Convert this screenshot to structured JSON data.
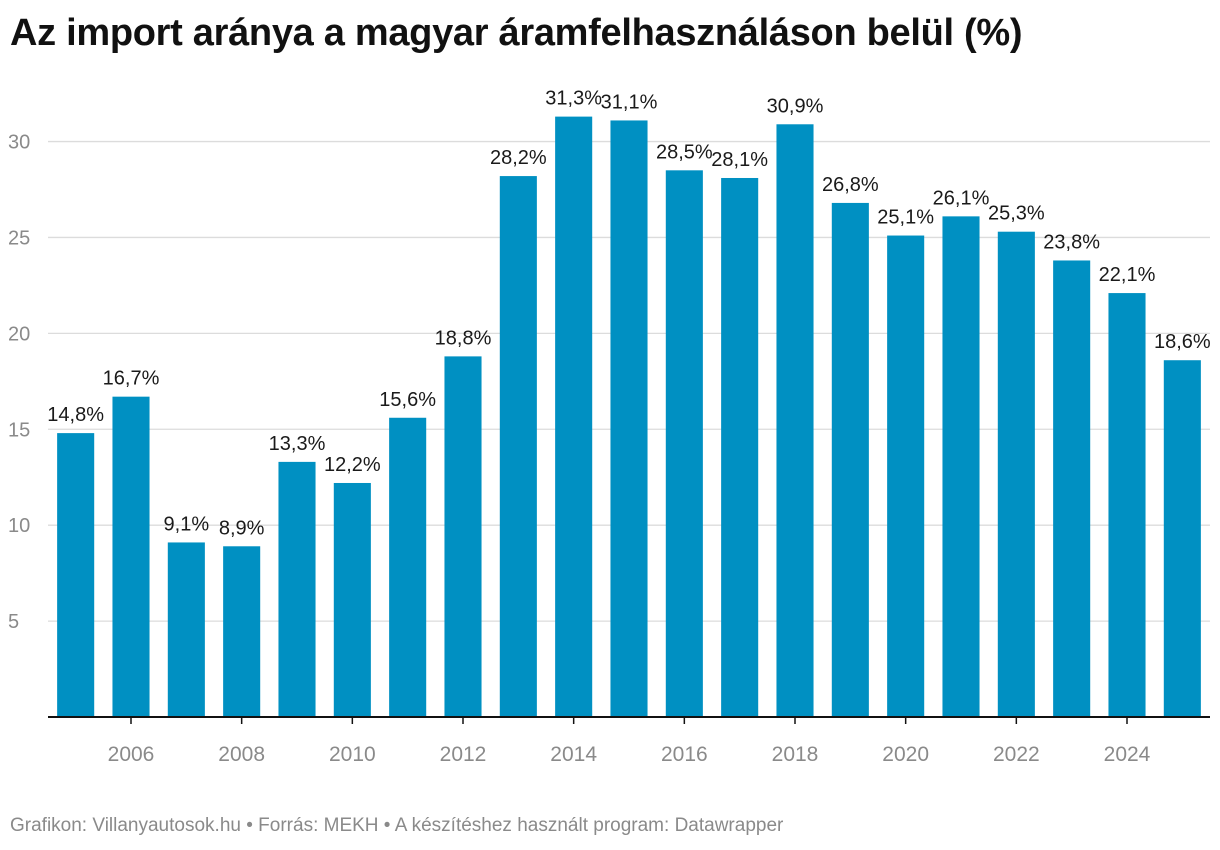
{
  "title": "Az import aránya a magyar áramfelhasználáson belül (%)",
  "footer": {
    "grafikon": "Grafikon: Villanyautosok.hu",
    "sep1": " • ",
    "forras": "Forrás: MEKH",
    "sep2": " • ",
    "program": "A készítéshez használt program: Datawrapper"
  },
  "colors": {
    "bar": "#0090c2",
    "grid": "#dcdcdc",
    "axis": "#111111",
    "tick": "#8a8a8a",
    "label": "#1a1a1a"
  },
  "chart_data": {
    "type": "bar",
    "title": "Az import aránya a magyar áramfelhasználáson belül (%)",
    "xlabel": "",
    "ylabel": "",
    "categories": [
      "2005",
      "2006",
      "2007",
      "2008",
      "2009",
      "2010",
      "2011",
      "2012",
      "2013",
      "2014",
      "2015",
      "2016",
      "2017",
      "2018",
      "2019",
      "2020",
      "2021",
      "2022",
      "2023",
      "2024",
      "2025"
    ],
    "values": [
      14.8,
      16.7,
      9.1,
      8.9,
      13.3,
      12.2,
      15.6,
      18.8,
      28.2,
      31.3,
      31.1,
      28.5,
      28.1,
      30.9,
      26.8,
      25.1,
      26.1,
      25.3,
      23.8,
      22.1,
      18.6
    ],
    "data_labels": [
      "14,8%",
      "16,7%",
      "9,1%",
      "8,9%",
      "13,3%",
      "12,2%",
      "15,6%",
      "18,8%",
      "28,2%",
      "31,3%",
      "31,1%",
      "28,5%",
      "28,1%",
      "30,9%",
      "26,8%",
      "25,1%",
      "26,1%",
      "25,3%",
      "23,8%",
      "22,1%",
      "18,6%"
    ],
    "x_tick_labels": [
      "2006",
      "2008",
      "2010",
      "2012",
      "2014",
      "2016",
      "2018",
      "2020",
      "2022",
      "2024"
    ],
    "y_ticks": [
      5,
      10,
      15,
      20,
      25,
      30
    ],
    "ylim": [
      0,
      33
    ],
    "grid": true
  }
}
